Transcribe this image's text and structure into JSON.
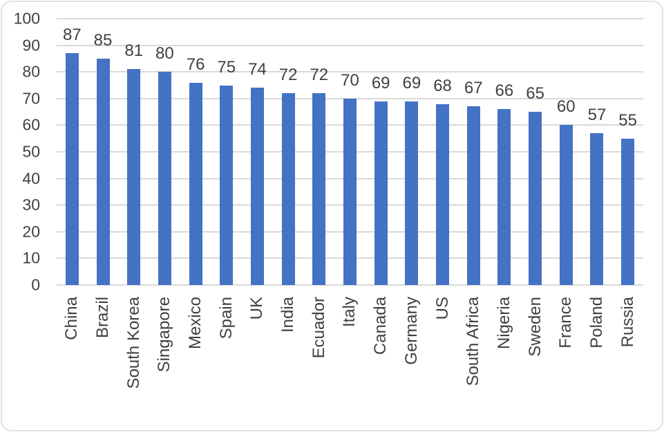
{
  "chart_data": {
    "type": "bar",
    "categories": [
      "China",
      "Brazil",
      "South Korea",
      "Singapore",
      "Mexico",
      "Spain",
      "UK",
      "India",
      "Ecuador",
      "Italy",
      "Canada",
      "Germany",
      "US",
      "South Africa",
      "Nigeria",
      "Sweden",
      "France",
      "Poland",
      "Russia"
    ],
    "values": [
      87,
      85,
      81,
      80,
      76,
      75,
      74,
      72,
      72,
      70,
      69,
      69,
      68,
      67,
      66,
      65,
      60,
      57,
      55
    ],
    "title": "",
    "xlabel": "",
    "ylabel": "",
    "ylim": [
      0,
      100
    ],
    "y_ticks": [
      0,
      10,
      20,
      30,
      40,
      50,
      60,
      70,
      80,
      90,
      100
    ],
    "grid": true,
    "legend": false,
    "data_labels_shown": true,
    "category_label_rotation_deg": 90,
    "colors": {
      "bar": "#4472C4",
      "gridline": "#D9D9D9",
      "axis_text": "#404040",
      "data_label_text": "#404040",
      "frame_border": "#E2E2E2",
      "background": "#FFFFFF"
    }
  }
}
